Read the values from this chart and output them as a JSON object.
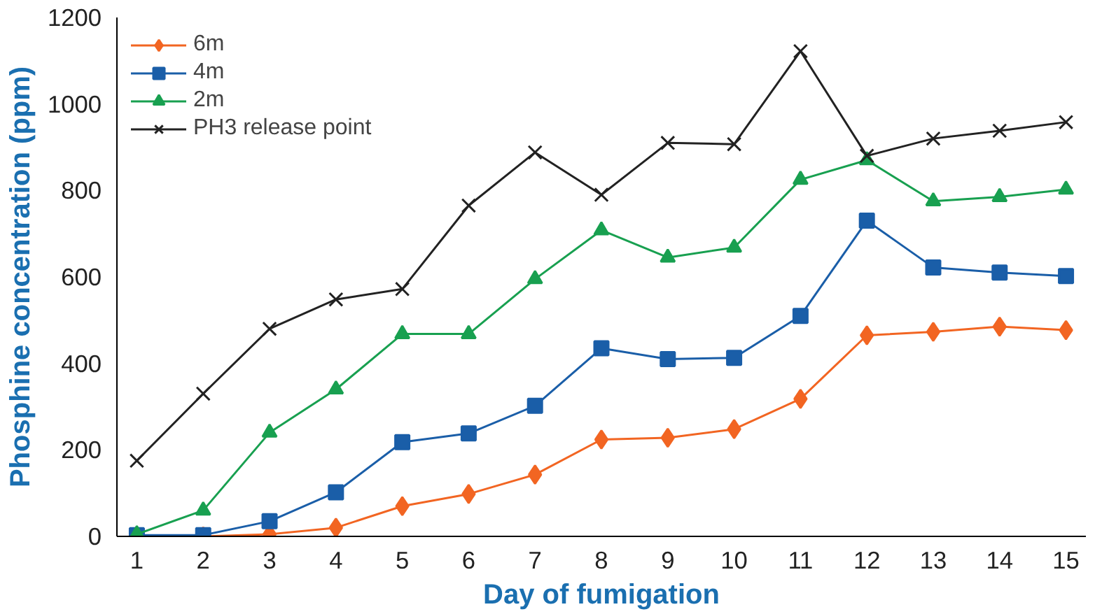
{
  "chart_data": {
    "type": "line",
    "xlabel": "Day of fumigation",
    "ylabel": "Phosphine concentration (ppm)",
    "x": [
      1,
      2,
      3,
      4,
      5,
      6,
      7,
      8,
      9,
      10,
      11,
      12,
      13,
      14,
      15
    ],
    "xlim": [
      0.7,
      15.3
    ],
    "xticks": [
      1,
      2,
      3,
      4,
      5,
      6,
      7,
      8,
      9,
      10,
      11,
      12,
      13,
      14,
      15
    ],
    "ylim": [
      0,
      1200
    ],
    "yticks": [
      0,
      200,
      400,
      600,
      800,
      1000,
      1200
    ],
    "grid": false,
    "legend": "top left",
    "series": [
      {
        "name": "6m",
        "color": "#f26522",
        "marker": "diamond",
        "values": [
          0,
          0,
          5,
          20,
          70,
          98,
          143,
          224,
          228,
          248,
          318,
          465,
          473,
          485,
          477
        ]
      },
      {
        "name": "4m",
        "color": "#1a5ea8",
        "marker": "square",
        "values": [
          3,
          3,
          35,
          102,
          218,
          238,
          302,
          435,
          410,
          413,
          510,
          730,
          622,
          610,
          602
        ]
      },
      {
        "name": "2m",
        "color": "#18a050",
        "marker": "triangle",
        "values": [
          5,
          60,
          240,
          340,
          468,
          468,
          595,
          708,
          645,
          668,
          825,
          870,
          775,
          785,
          802
        ]
      },
      {
        "name": "PH3 release point",
        "color": "#222222",
        "marker": "x",
        "values": [
          175,
          330,
          480,
          548,
          572,
          765,
          888,
          790,
          910,
          907,
          1122,
          880,
          920,
          938,
          958
        ]
      }
    ]
  }
}
